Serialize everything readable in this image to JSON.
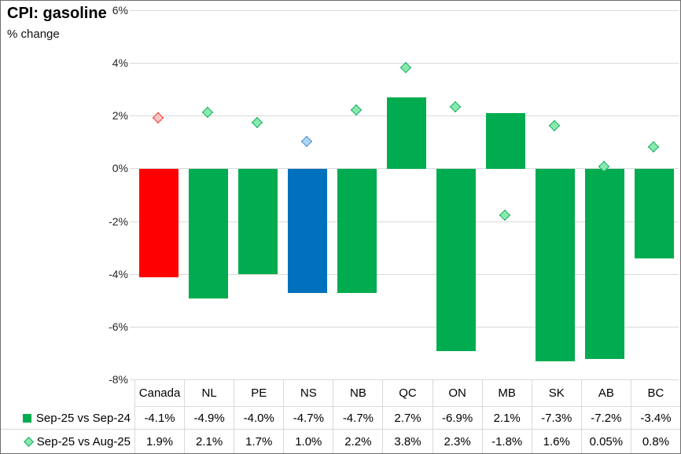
{
  "title": "CPI: gasoline",
  "subtitle": "% change",
  "colors": {
    "bar_green": "#00ac4f",
    "bar_red": "#ff0000",
    "bar_blue": "#0071bc",
    "marker_green_fill": "#87ebad",
    "marker_green_border": "#0da557",
    "marker_red_fill": "#f7c7c6",
    "marker_red_border": "#ff1f1f",
    "marker_blue_fill": "#add7f3",
    "marker_blue_border": "#3d85c8",
    "gridline": "#d9d9d9",
    "axis_text": "#262626"
  },
  "chart_data": {
    "type": "bar",
    "title": "CPI: gasoline",
    "subtitle": "% change",
    "categories": [
      "Canada",
      "NL",
      "PE",
      "NS",
      "NB",
      "QC",
      "ON",
      "MB",
      "SK",
      "AB",
      "BC"
    ],
    "series": [
      {
        "name": "Sep-25 vs Sep-24",
        "type": "bar",
        "values": [
          -4.1,
          -4.9,
          -4.0,
          -4.7,
          -4.7,
          2.7,
          -6.9,
          2.1,
          -7.3,
          -7.2,
          -3.4
        ],
        "labels": [
          "-4.1%",
          "-4.9%",
          "-4.0%",
          "-4.7%",
          "-4.7%",
          "2.7%",
          "-6.9%",
          "2.1%",
          "-7.3%",
          "-7.2%",
          "-3.4%"
        ],
        "bar_colors": [
          "#ff0000",
          "#00ac4f",
          "#00ac4f",
          "#0071bc",
          "#00ac4f",
          "#00ac4f",
          "#00ac4f",
          "#00ac4f",
          "#00ac4f",
          "#00ac4f",
          "#00ac4f"
        ]
      },
      {
        "name": "Sep-25 vs Aug-25",
        "type": "scatter",
        "marker": "diamond",
        "values": [
          1.9,
          2.1,
          1.7,
          1.0,
          2.2,
          3.8,
          2.3,
          -1.8,
          1.6,
          0.05,
          0.8
        ],
        "labels": [
          "1.9%",
          "2.1%",
          "1.7%",
          "1.0%",
          "2.2%",
          "3.8%",
          "2.3%",
          "-1.8%",
          "1.6%",
          "0.05%",
          "0.8%"
        ],
        "marker_fills": [
          "#f7c7c6",
          "#87ebad",
          "#87ebad",
          "#add7f3",
          "#87ebad",
          "#87ebad",
          "#87ebad",
          "#87ebad",
          "#87ebad",
          "#87ebad",
          "#87ebad"
        ],
        "marker_borders": [
          "#ff1f1f",
          "#0da557",
          "#0da557",
          "#3d85c8",
          "#0da557",
          "#0da557",
          "#0da557",
          "#0da557",
          "#0da557",
          "#0da557",
          "#0da557"
        ]
      }
    ],
    "y_axis": {
      "min": -8,
      "max": 6,
      "step": 2,
      "tick_values": [
        6,
        4,
        2,
        0,
        -2,
        -4,
        -6,
        -8
      ],
      "tick_labels": [
        "6%",
        "4%",
        "2%",
        "0%",
        "-2%",
        "-4%",
        "-6%",
        "-8%"
      ]
    },
    "grid": true,
    "legend_position": "bottom-table"
  }
}
